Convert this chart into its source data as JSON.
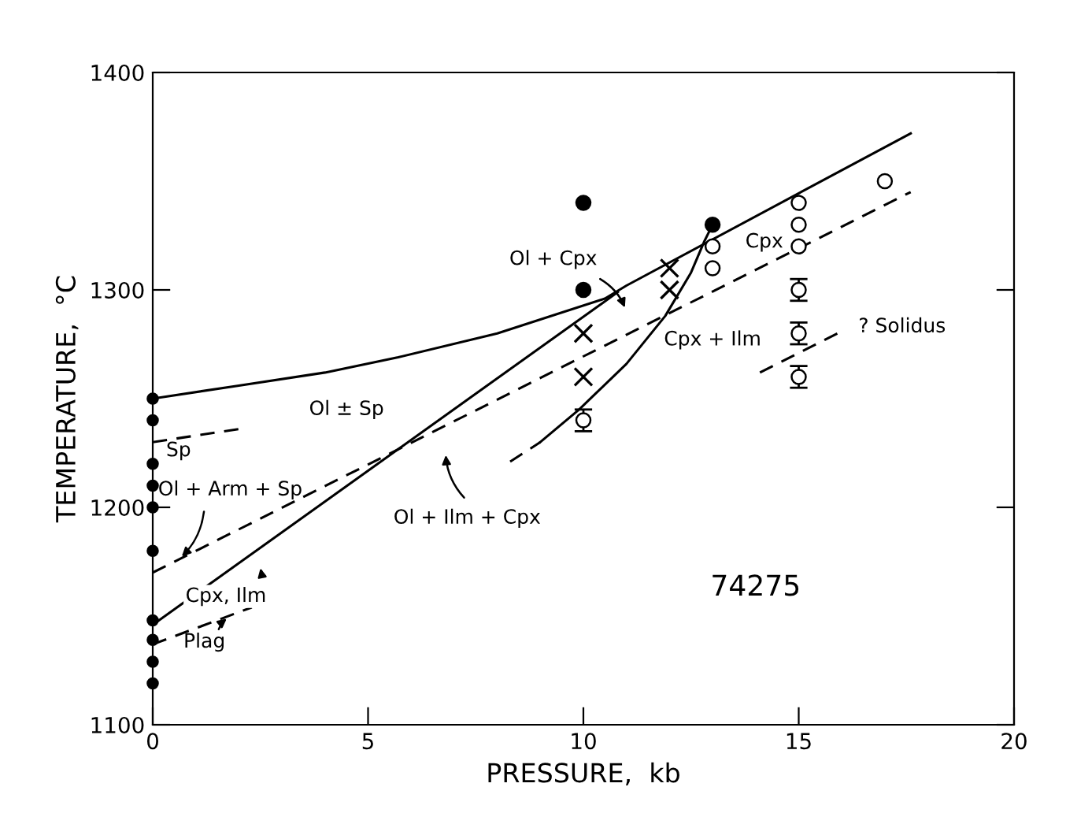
{
  "chart_data": {
    "type": "line",
    "xlabel": "PRESSURE,  kb",
    "ylabel": "TEMPERATURE,  °C",
    "xlim": [
      0,
      20
    ],
    "ylim": [
      1100,
      1400
    ],
    "xticks": [
      0,
      5,
      10,
      15,
      20
    ],
    "yticks": [
      1100,
      1200,
      1300,
      1400
    ],
    "grid": false,
    "legend": false,
    "series": [
      {
        "color": "#000000",
        "line_style": "solid",
        "x": [
          0,
          2,
          4,
          5.7,
          8,
          10.5,
          11,
          17.6
        ],
        "values": [
          1250,
          1256,
          1262,
          1269,
          1280,
          1296,
          1302,
          1372
        ]
      },
      {
        "color": "#000000",
        "line_style": "solid",
        "x": [
          0,
          10.8
        ],
        "values": [
          1146,
          1299
        ]
      },
      {
        "color": "#000000",
        "line_style": "solid",
        "x": [
          9.0,
          9.9,
          11.0,
          11.9,
          12.5,
          12.8,
          13.0
        ],
        "values": [
          1230,
          1245,
          1266,
          1288,
          1308,
          1322,
          1330
        ]
      },
      {
        "color": "#000000",
        "line_style": "dashed",
        "x": [
          8.3,
          9.0
        ],
        "values": [
          1221,
          1230
        ]
      },
      {
        "color": "#000000",
        "line_style": "dashed",
        "x": [
          0,
          17.6
        ],
        "values": [
          1170,
          1345
        ]
      },
      {
        "color": "#000000",
        "line_style": "dashed",
        "x": [
          0,
          2.0
        ],
        "values": [
          1230,
          1236
        ]
      },
      {
        "color": "#000000",
        "line_style": "dashed",
        "x": [
          0,
          2.3
        ],
        "values": [
          1137,
          1154
        ]
      },
      {
        "color": "#000000",
        "line_style": "dashed",
        "x": [
          14.1,
          16.0
        ],
        "values": [
          1262,
          1281
        ]
      },
      {
        "type": "scatter",
        "color": "#000000",
        "marker": "circle",
        "x": [
          10,
          10,
          13
        ],
        "values": [
          1340,
          1300,
          1330
        ]
      },
      {
        "type": "scatter",
        "color": "#000000",
        "marker": "circle",
        "x": [
          13,
          13,
          15,
          15,
          15,
          17
        ],
        "values": [
          1320,
          1310,
          1340,
          1330,
          1320,
          1350
        ]
      },
      {
        "type": "scatter",
        "color": "#000000",
        "marker": "circle",
        "x": [
          10,
          15,
          15,
          15
        ],
        "values": [
          1240,
          1300,
          1280,
          1260
        ],
        "errors": [
          5,
          5,
          5,
          5
        ]
      },
      {
        "type": "scatter",
        "color": "#000000",
        "marker": "cross",
        "x": [
          10,
          10,
          12,
          12
        ],
        "values": [
          1280,
          1260,
          1310,
          1300
        ]
      },
      {
        "type": "scatter",
        "color": "#000000",
        "marker": "circle",
        "x": [
          0,
          0,
          0,
          0,
          0,
          0,
          0,
          0,
          0,
          0
        ],
        "values": [
          1250,
          1240,
          1220,
          1210,
          1200,
          1180,
          1148,
          1139,
          1129,
          1119
        ]
      }
    ],
    "annotations": [
      "Ol + Cpx",
      "Cpx",
      "Cpx + Ilm",
      "? Solidus",
      "Ol ± Sp",
      "Sp",
      {
        "text": "Ol + Arm + Sp",
        "x": 0.6,
        "y": 1176
      },
      "Ol + Ilm + Cpx",
      "Cpx, Ilm",
      {
        "text": "Plag",
        "x": 1.8,
        "y": 1150
      },
      "74275"
    ]
  }
}
